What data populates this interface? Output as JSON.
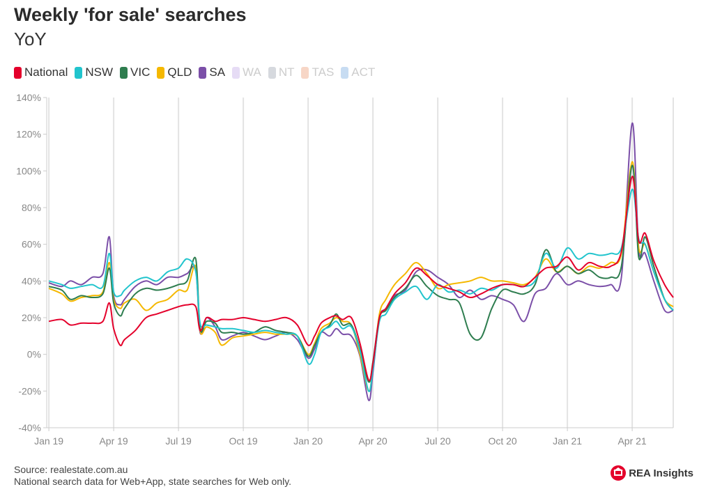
{
  "header": {
    "title": "Weekly 'for sale' searches",
    "subtitle": "YoY"
  },
  "footer": {
    "source": "Source: realestate.com.au",
    "note": "National search data for Web+App, state searches for Web only."
  },
  "logo": {
    "text": "REA Insights",
    "icon": "rea-house-icon",
    "color": "#e4002b"
  },
  "legend": [
    {
      "name": "National",
      "color": "#e4002b",
      "active": true
    },
    {
      "name": "NSW",
      "color": "#21c4cd",
      "active": true
    },
    {
      "name": "VIC",
      "color": "#2e7d4f",
      "active": true
    },
    {
      "name": "QLD",
      "color": "#f5b800",
      "active": true
    },
    {
      "name": "SA",
      "color": "#7b4fa8",
      "active": true
    },
    {
      "name": "WA",
      "color": "#e6dcf5",
      "active": false
    },
    {
      "name": "NT",
      "color": "#d6d9de",
      "active": false
    },
    {
      "name": "TAS",
      "color": "#f7d6c6",
      "active": false
    },
    {
      "name": "ACT",
      "color": "#c7dcf2",
      "active": false
    }
  ],
  "chart_data": {
    "type": "line",
    "title": "Weekly 'for sale' searches",
    "subtitle": "YoY",
    "ylim": [
      -40,
      140
    ],
    "yticks": [
      "-40%",
      "-20%",
      "0%",
      "20%",
      "40%",
      "60%",
      "80%",
      "100%",
      "120%",
      "140%"
    ],
    "ytick_values": [
      -40,
      -20,
      0,
      20,
      40,
      60,
      80,
      100,
      120,
      140
    ],
    "xticks": [
      "Jan 19",
      "Apr 19",
      "Jul 19",
      "Oct 19",
      "Jan 20",
      "Apr 20",
      "Jul 20",
      "Oct 20",
      "Jan 21",
      "Apr 21"
    ],
    "xtick_months": [
      0,
      3,
      6,
      9,
      12,
      15,
      18,
      21,
      24,
      27
    ],
    "xlim_months": [
      -0.1,
      28.9
    ],
    "grid": "vertical",
    "series": [
      {
        "name": "National",
        "color": "#e4002b",
        "x": [
          0,
          0.6,
          1,
          1.5,
          2,
          2.5,
          2.8,
          3,
          3.3,
          3.5,
          4,
          4.5,
          5,
          5.5,
          6,
          6.4,
          6.8,
          7,
          7.3,
          7.7,
          8,
          8.5,
          9,
          9.5,
          10,
          10.5,
          11,
          11.5,
          12,
          12.3,
          12.6,
          13,
          13.3,
          13.6,
          14,
          14.4,
          14.8,
          15,
          15.3,
          15.6,
          16,
          16.5,
          17,
          17.5,
          18,
          18.5,
          19,
          19.5,
          20,
          20.5,
          21,
          21.5,
          22,
          22.5,
          23,
          23.5,
          24,
          24.5,
          25,
          25.5,
          26,
          26.5,
          27,
          27.3,
          27.6,
          28,
          28.5,
          28.9
        ],
        "y": [
          18,
          19,
          16,
          17,
          17,
          18,
          28,
          14,
          5,
          8,
          13,
          20,
          22,
          24,
          26,
          27,
          26,
          13,
          20,
          18,
          19,
          19,
          20,
          19,
          18,
          19,
          20,
          16,
          5,
          10,
          17,
          20,
          21,
          19,
          20,
          6,
          -14,
          -5,
          20,
          25,
          33,
          39,
          47,
          43,
          38,
          36,
          34,
          31,
          33,
          36,
          38,
          38,
          37,
          42,
          47,
          48,
          53,
          46,
          50,
          48,
          48,
          56,
          97,
          62,
          66,
          51,
          38,
          31
        ]
      },
      {
        "name": "NSW",
        "color": "#21c4cd",
        "x": [
          0,
          0.6,
          1,
          1.5,
          2,
          2.5,
          2.8,
          3,
          3.3,
          3.5,
          4,
          4.5,
          5,
          5.5,
          6,
          6.4,
          6.8,
          7,
          7.3,
          7.7,
          8,
          8.5,
          9,
          9.5,
          10,
          10.5,
          11,
          11.5,
          12,
          12.3,
          12.6,
          13,
          13.3,
          13.6,
          14,
          14.4,
          14.8,
          15,
          15.3,
          15.6,
          16,
          16.5,
          17,
          17.5,
          18,
          18.5,
          19,
          19.5,
          20,
          20.5,
          21,
          21.5,
          22,
          22.5,
          23,
          23.5,
          24,
          24.5,
          25,
          25.5,
          26,
          26.5,
          27,
          27.3,
          27.6,
          28,
          28.5,
          28.9
        ],
        "y": [
          40,
          38,
          36,
          37,
          38,
          37,
          55,
          34,
          32,
          35,
          40,
          42,
          40,
          45,
          47,
          52,
          45,
          17,
          16,
          15,
          14,
          14,
          13,
          12,
          13,
          12,
          11,
          10,
          -5,
          0,
          12,
          15,
          18,
          14,
          15,
          2,
          -20,
          -8,
          18,
          22,
          30,
          34,
          37,
          30,
          38,
          34,
          35,
          33,
          36,
          35,
          38,
          38,
          37,
          40,
          55,
          47,
          58,
          52,
          55,
          54,
          55,
          58,
          90,
          63,
          60,
          45,
          30,
          24
        ]
      },
      {
        "name": "VIC",
        "color": "#2e7d4f",
        "x": [
          0,
          0.6,
          1,
          1.5,
          2,
          2.5,
          2.8,
          3,
          3.3,
          3.5,
          4,
          4.5,
          5,
          5.5,
          6,
          6.4,
          6.8,
          7,
          7.3,
          7.7,
          8,
          8.5,
          9,
          9.5,
          10,
          10.5,
          11,
          11.5,
          12,
          12.3,
          12.6,
          13,
          13.3,
          13.6,
          14,
          14.4,
          14.8,
          15,
          15.3,
          15.6,
          16,
          16.5,
          17,
          17.5,
          18,
          18.5,
          19,
          19.5,
          20,
          20.5,
          21,
          21.5,
          22,
          22.5,
          23,
          23.5,
          24,
          24.5,
          25,
          25.5,
          26,
          26.5,
          27,
          27.3,
          27.6,
          28,
          28.5,
          28.9
        ],
        "y": [
          37,
          35,
          30,
          32,
          31,
          33,
          47,
          28,
          21,
          25,
          33,
          36,
          35,
          36,
          38,
          40,
          52,
          14,
          18,
          17,
          12,
          12,
          11,
          12,
          15,
          13,
          12,
          10,
          -1,
          5,
          12,
          16,
          22,
          16,
          16,
          3,
          -15,
          -4,
          20,
          24,
          31,
          36,
          43,
          37,
          32,
          30,
          28,
          11,
          9,
          25,
          35,
          34,
          33,
          38,
          57,
          45,
          48,
          44,
          46,
          42,
          42,
          48,
          103,
          53,
          64,
          48,
          30,
          24
        ]
      },
      {
        "name": "QLD",
        "color": "#f5b800",
        "x": [
          0,
          0.6,
          1,
          1.5,
          2,
          2.5,
          2.8,
          3,
          3.3,
          3.5,
          4,
          4.5,
          5,
          5.5,
          6,
          6.4,
          6.8,
          7,
          7.3,
          7.7,
          8,
          8.5,
          9,
          9.5,
          10,
          10.5,
          11,
          11.5,
          12,
          12.3,
          12.6,
          13,
          13.3,
          13.6,
          14,
          14.4,
          14.8,
          15,
          15.3,
          15.6,
          16,
          16.5,
          17,
          17.5,
          18,
          18.5,
          19,
          19.5,
          20,
          20.5,
          21,
          21.5,
          22,
          22.5,
          23,
          23.5,
          24,
          24.5,
          25,
          25.5,
          26,
          26.5,
          27,
          27.3,
          27.6,
          28,
          28.5,
          28.9
        ],
        "y": [
          36,
          33,
          29,
          31,
          32,
          34,
          50,
          30,
          25,
          28,
          30,
          24,
          28,
          30,
          35,
          35,
          48,
          13,
          15,
          12,
          5,
          9,
          10,
          11,
          12,
          11,
          11,
          10,
          0,
          6,
          14,
          17,
          20,
          18,
          16,
          0,
          -20,
          -7,
          22,
          30,
          38,
          44,
          50,
          44,
          36,
          38,
          39,
          40,
          42,
          40,
          40,
          39,
          38,
          42,
          52,
          45,
          48,
          44,
          48,
          47,
          50,
          55,
          105,
          58,
          60,
          45,
          30,
          26
        ]
      },
      {
        "name": "SA",
        "color": "#7b4fa8",
        "x": [
          0,
          0.6,
          1,
          1.5,
          2,
          2.5,
          2.8,
          3,
          3.3,
          3.5,
          4,
          4.5,
          5,
          5.5,
          6,
          6.4,
          6.8,
          7,
          7.3,
          7.7,
          8,
          8.5,
          9,
          9.5,
          10,
          10.5,
          11,
          11.5,
          12,
          12.3,
          12.6,
          13,
          13.3,
          13.6,
          14,
          14.4,
          14.8,
          15,
          15.3,
          15.6,
          16,
          16.5,
          17,
          17.5,
          18,
          18.5,
          19,
          19.5,
          20,
          20.5,
          21,
          21.5,
          22,
          22.5,
          23,
          23.5,
          24,
          24.5,
          25,
          25.5,
          26,
          26.5,
          27,
          27.3,
          27.6,
          28,
          28.5,
          28.9
        ],
        "y": [
          39,
          37,
          40,
          38,
          42,
          44,
          64,
          32,
          27,
          30,
          37,
          40,
          38,
          42,
          42,
          44,
          46,
          12,
          20,
          15,
          8,
          10,
          12,
          10,
          8,
          10,
          12,
          8,
          -2,
          3,
          12,
          10,
          14,
          11,
          10,
          -1,
          -25,
          -10,
          20,
          25,
          32,
          35,
          45,
          46,
          42,
          38,
          31,
          35,
          30,
          32,
          30,
          27,
          18,
          33,
          36,
          44,
          38,
          40,
          38,
          37,
          38,
          42,
          126,
          58,
          55,
          40,
          24,
          24
        ]
      }
    ]
  }
}
